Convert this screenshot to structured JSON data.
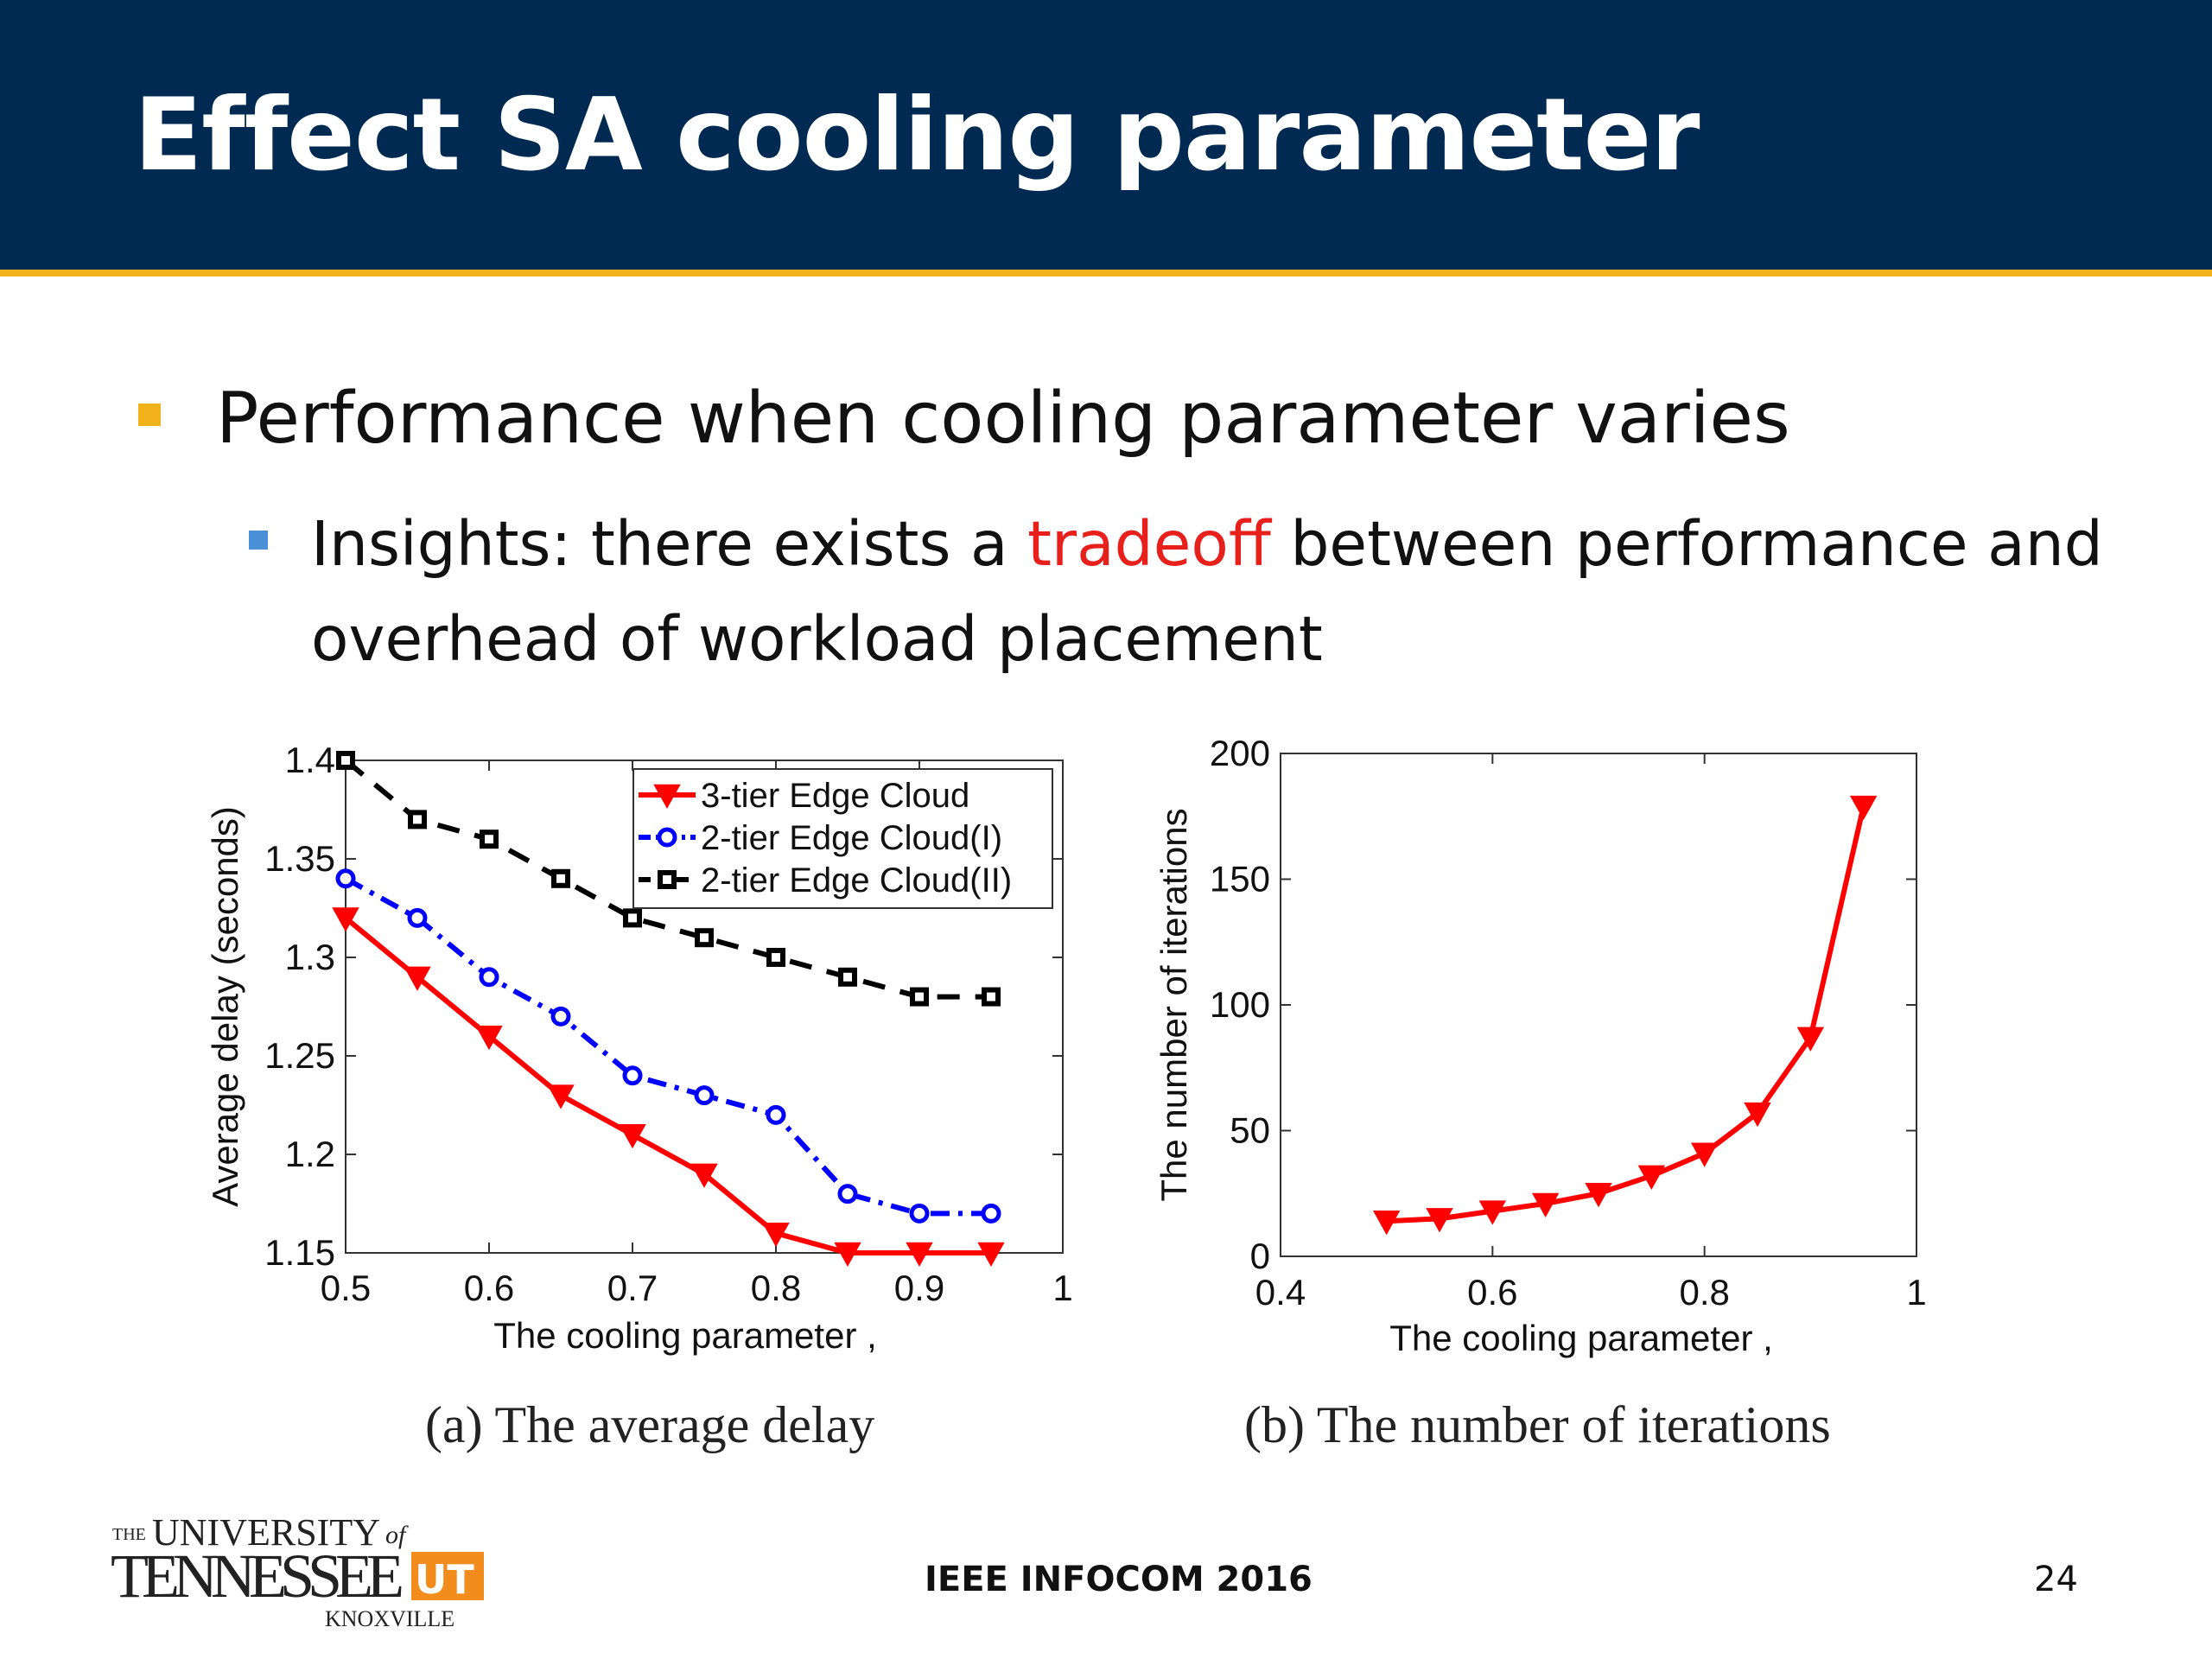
{
  "slide": {
    "title": "Effect SA cooling parameter",
    "bullet1": "Performance when cooling parameter varies",
    "bullet2_pre": "Insights: there exists a ",
    "bullet2_hl": "tradeoff",
    "bullet2_post": " between performance and overhead of workload placement",
    "footer_center": "IEEE INFOCOM 2016",
    "page_number": "24"
  },
  "colors": {
    "banner": "#002a52",
    "accent_gold": "#f2b21c",
    "highlight": "#e8201c",
    "series_red": "#ff0000",
    "series_blue": "#0000ff",
    "series_black": "#000000"
  },
  "logo": {
    "line1_small": "THE",
    "line1": "UNIVERSITY",
    "line1_of": "of",
    "line2": "TENNESSEE",
    "mark": "UT",
    "line3": "KNOXVILLE"
  },
  "chart_data": [
    {
      "type": "line",
      "caption": "(a) The average delay",
      "xlabel": "The cooling parameter ,",
      "ylabel": "Average delay (seconds)",
      "xlim": [
        0.5,
        1.0
      ],
      "ylim": [
        1.15,
        1.4
      ],
      "xticks": [
        "0.5",
        "0.6",
        "0.7",
        "0.8",
        "0.9",
        "1"
      ],
      "yticks": [
        "1.15",
        "1.2",
        "1.25",
        "1.3",
        "1.35",
        "1.4"
      ],
      "x": [
        0.5,
        0.55,
        0.6,
        0.65,
        0.7,
        0.75,
        0.8,
        0.85,
        0.9,
        0.95
      ],
      "legend_position": "top-right",
      "grid": false,
      "series": [
        {
          "name": "3-tier Edge Cloud",
          "marker": "triangle-down",
          "line": "solid",
          "color": "#ff0000",
          "values": [
            1.32,
            1.29,
            1.26,
            1.23,
            1.21,
            1.19,
            1.16,
            1.15,
            1.15,
            1.15
          ]
        },
        {
          "name": "2-tier Edge Cloud(I)",
          "marker": "circle",
          "line": "dash-dot",
          "color": "#0000ff",
          "values": [
            1.34,
            1.32,
            1.29,
            1.27,
            1.24,
            1.23,
            1.22,
            1.18,
            1.17,
            1.17
          ]
        },
        {
          "name": "2-tier Edge Cloud(II)",
          "marker": "square",
          "line": "dashed",
          "color": "#000000",
          "values": [
            1.4,
            1.37,
            1.36,
            1.34,
            1.32,
            1.31,
            1.3,
            1.29,
            1.28,
            1.28
          ]
        }
      ]
    },
    {
      "type": "line",
      "caption": "(b) The number of iterations",
      "xlabel": "The cooling parameter ,",
      "ylabel": "The number of iterations",
      "xlim": [
        0.4,
        1.0
      ],
      "ylim": [
        0,
        200
      ],
      "xticks": [
        "0.4",
        "0.6",
        "0.8",
        "1"
      ],
      "yticks": [
        "0",
        "50",
        "100",
        "150",
        "200"
      ],
      "x": [
        0.5,
        0.55,
        0.6,
        0.65,
        0.7,
        0.75,
        0.8,
        0.85,
        0.9,
        0.95
      ],
      "grid": false,
      "series": [
        {
          "marker": "triangle-down",
          "line": "solid",
          "color": "#ff0000",
          "values": [
            14,
            15,
            18,
            21,
            25,
            32,
            41,
            57,
            87,
            179
          ]
        }
      ]
    }
  ]
}
